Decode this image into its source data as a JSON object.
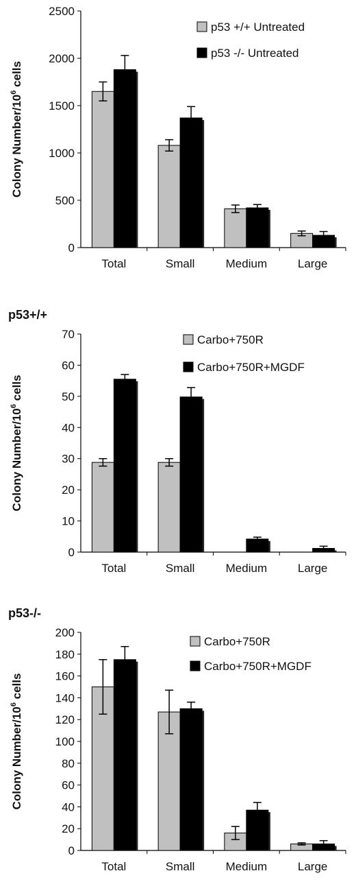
{
  "chart_data": [
    {
      "type": "bar",
      "title": "",
      "ylabel": "Colony Number/10^6 cells",
      "ylim": [
        0,
        2500
      ],
      "yticks": [
        0,
        500,
        1000,
        1500,
        2000,
        2500
      ],
      "categories": [
        "Total",
        "Small",
        "Medium",
        "Large"
      ],
      "series": [
        {
          "name": "p53 +/+ Untreated",
          "color": "#c0c0c0",
          "values": [
            1650,
            1080,
            410,
            150
          ],
          "errors": [
            100,
            60,
            40,
            25
          ]
        },
        {
          "name": "p53 -/- Untreated",
          "color": "#000000",
          "values": [
            1880,
            1370,
            420,
            130
          ],
          "errors": [
            150,
            120,
            35,
            40
          ]
        }
      ],
      "legend_position": "top-right",
      "grid": false
    },
    {
      "type": "bar",
      "title": "p53+/+",
      "ylabel": "Colony Number/10^6 cells",
      "ylim": [
        0,
        70
      ],
      "yticks": [
        0,
        10,
        20,
        30,
        40,
        50,
        60,
        70
      ],
      "categories": [
        "Total",
        "Small",
        "Medium",
        "Large"
      ],
      "series": [
        {
          "name": "Carbo+750R",
          "color": "#c0c0c0",
          "values": [
            28.8,
            28.8,
            0,
            0
          ],
          "errors": [
            1.2,
            1.2,
            0,
            0
          ]
        },
        {
          "name": "Carbo+750R+MGDF",
          "color": "#000000",
          "values": [
            55.5,
            49.8,
            4.2,
            1.2
          ],
          "errors": [
            1.5,
            3,
            0.6,
            0.7
          ]
        }
      ],
      "legend_position": "top-right",
      "grid": false
    },
    {
      "type": "bar",
      "title": "p53-/-",
      "ylabel": "Colony Number/10^6 cells",
      "ylim": [
        0,
        200
      ],
      "yticks": [
        0,
        20,
        40,
        60,
        80,
        100,
        120,
        140,
        160,
        180,
        200
      ],
      "categories": [
        "Total",
        "Small",
        "Medium",
        "Large"
      ],
      "series": [
        {
          "name": "Carbo+750R",
          "color": "#c0c0c0",
          "values": [
            150,
            127,
            16,
            6
          ],
          "errors": [
            25,
            20,
            6,
            1
          ]
        },
        {
          "name": "Carbo+750R+MGDF",
          "color": "#000000",
          "values": [
            175,
            130,
            37,
            6
          ],
          "errors": [
            12,
            6,
            7,
            3
          ]
        }
      ],
      "legend_position": "top-right",
      "grid": false
    }
  ]
}
